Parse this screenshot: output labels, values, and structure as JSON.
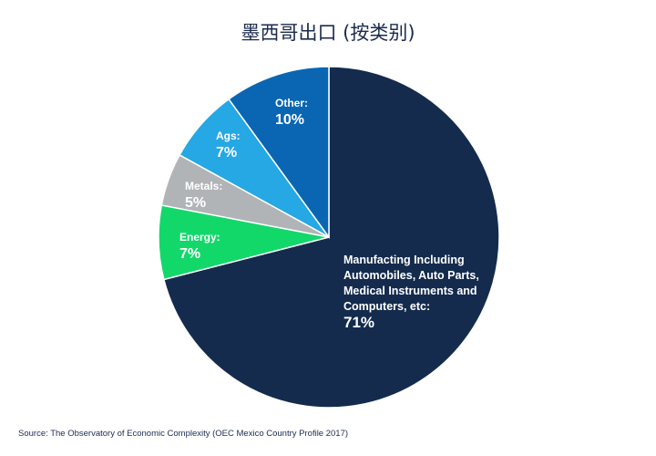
{
  "chart_data": {
    "type": "pie",
    "title": "墨西哥出口 (按类别)",
    "slices": [
      {
        "label_lines": [
          "Manufacting Including",
          "Automobiles, Auto Parts,",
          "Medical Instruments and",
          "Computers, etc:"
        ],
        "pct_label": "71%",
        "value": 71,
        "color": "#142b4d"
      },
      {
        "label_lines": [
          "Energy:"
        ],
        "pct_label": "7%",
        "value": 7,
        "color": "#12d86a"
      },
      {
        "label_lines": [
          "Metals:"
        ],
        "pct_label": "5%",
        "value": 5,
        "color": "#b1b4b7"
      },
      {
        "label_lines": [
          "Ags:"
        ],
        "pct_label": "7%",
        "value": 7,
        "color": "#25a8e3"
      },
      {
        "label_lines": [
          "Other:"
        ],
        "pct_label": "10%",
        "value": 10,
        "color": "#0a66b2"
      }
    ]
  },
  "source": "Source: The Observatory of Economic Complexity (OEC Mexico Country Profile 2017)"
}
